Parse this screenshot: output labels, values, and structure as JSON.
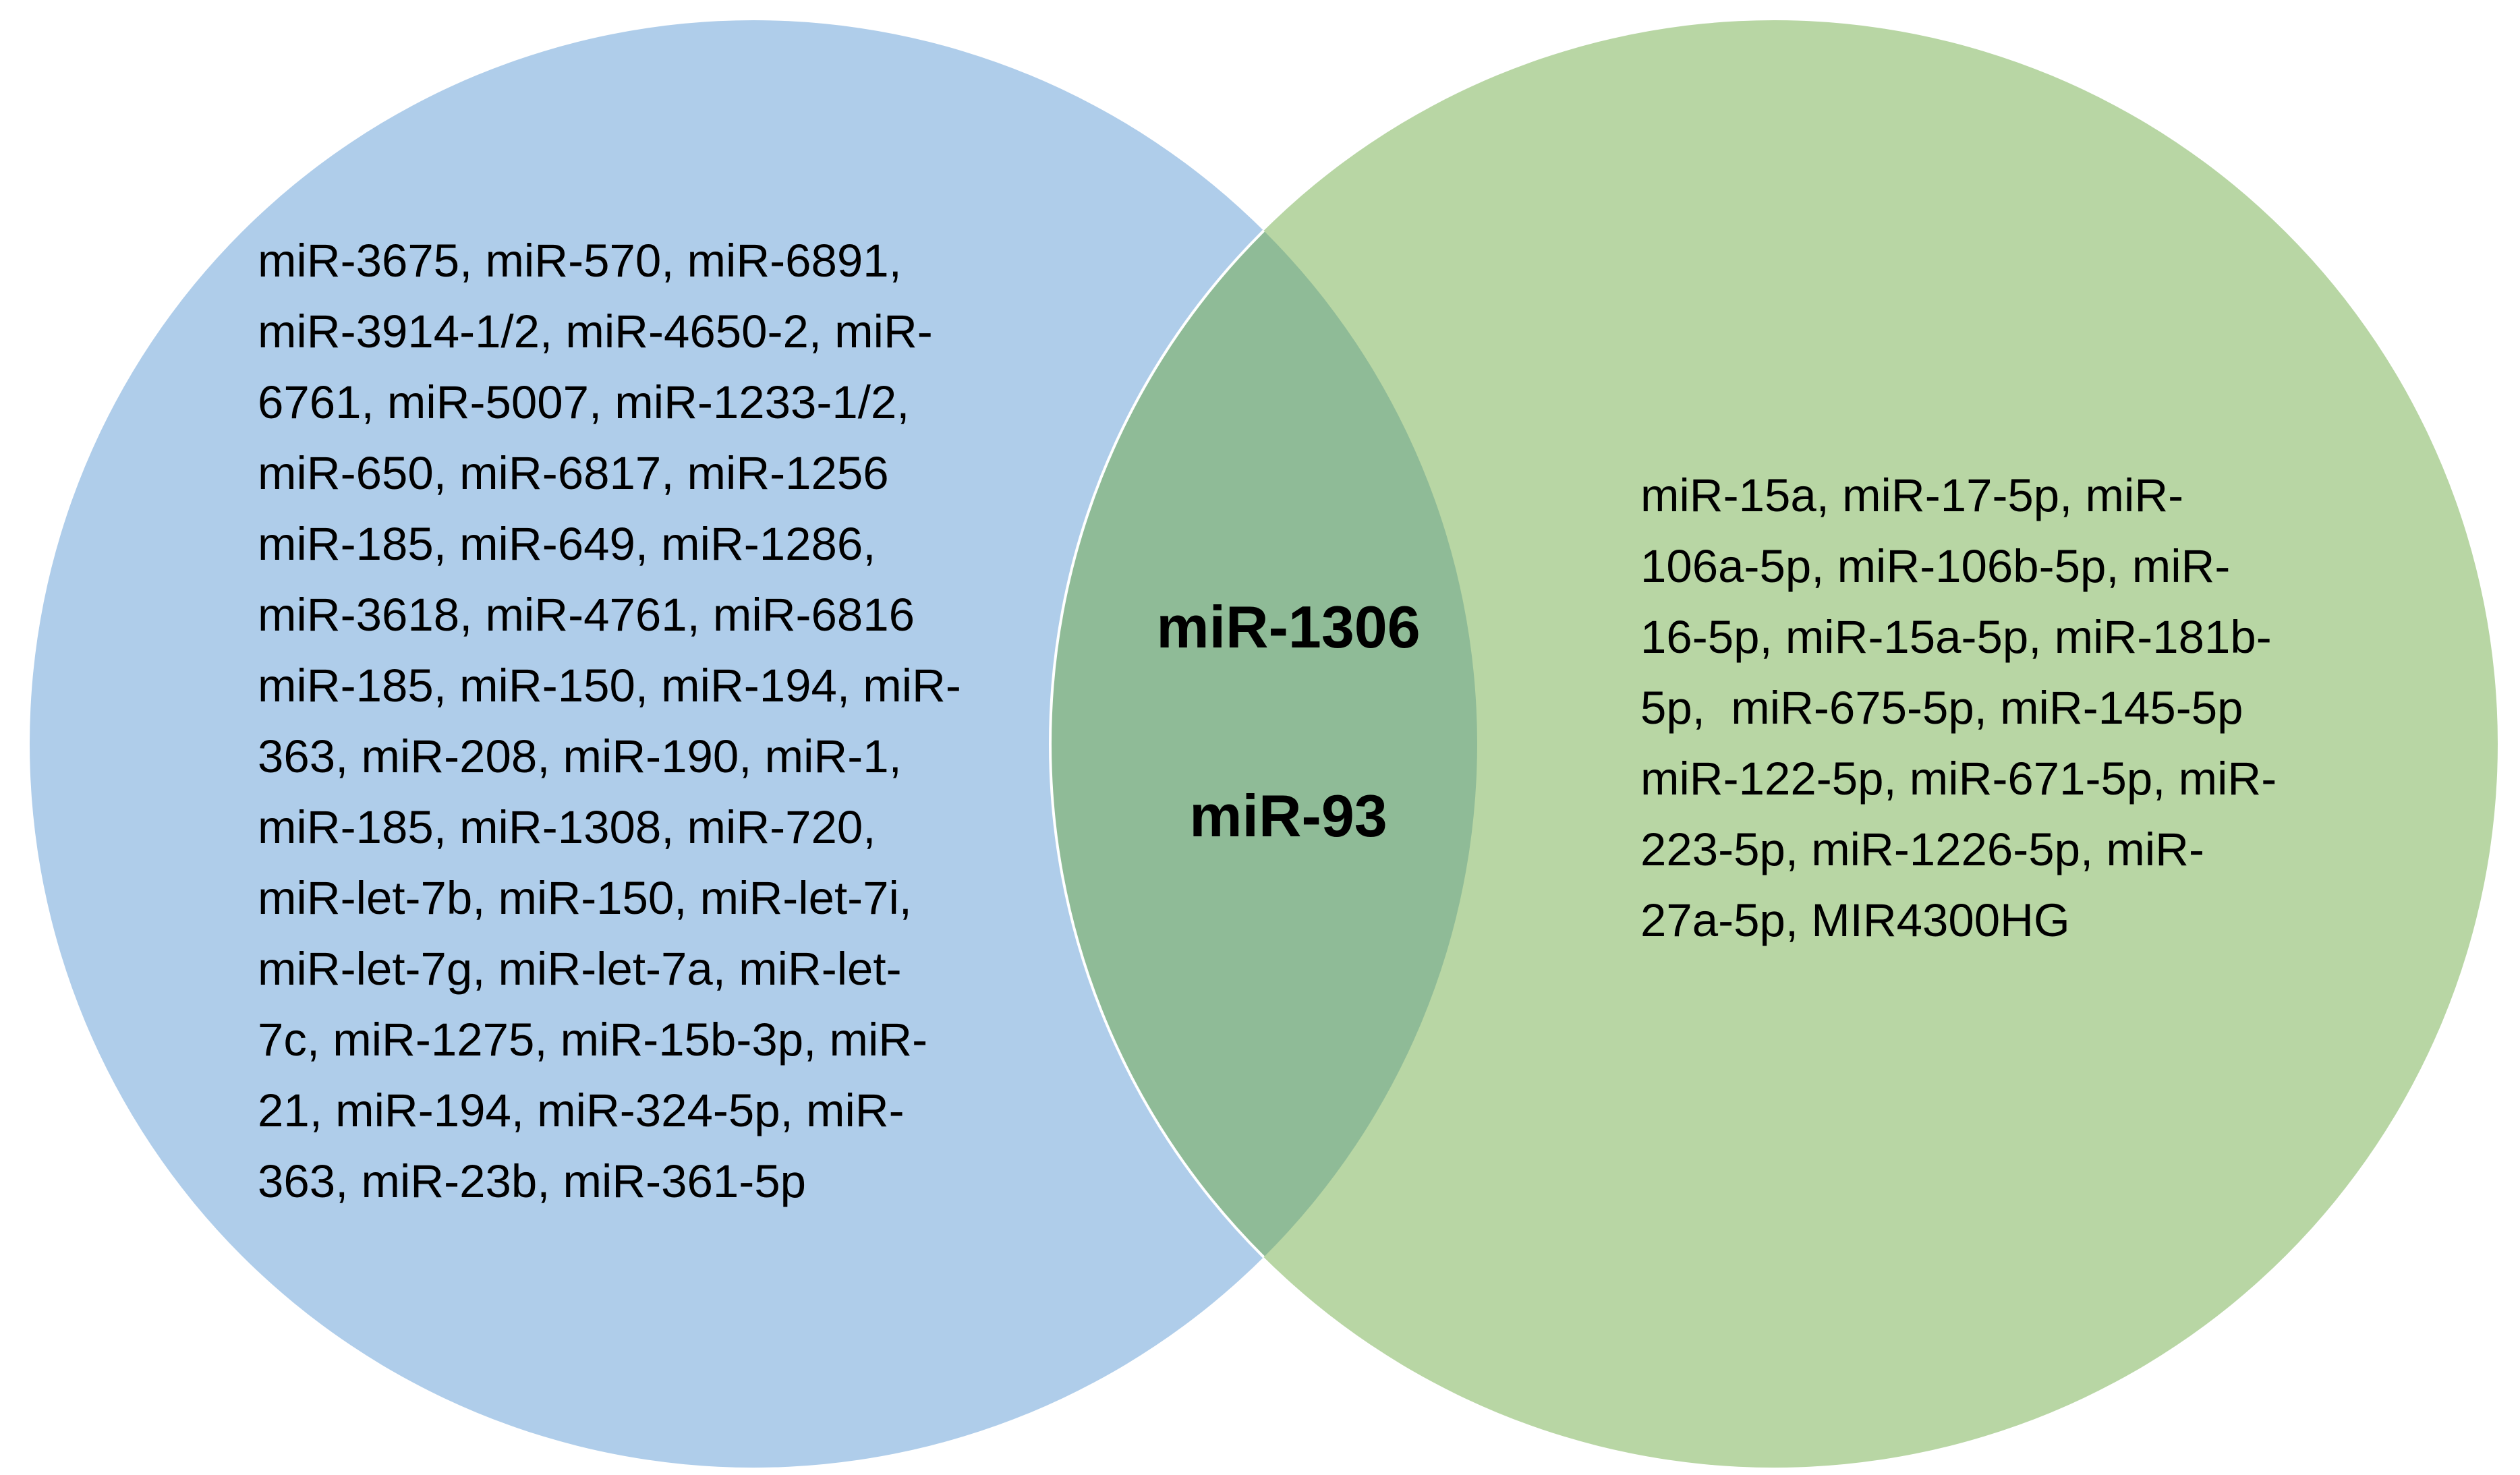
{
  "diagram": {
    "type": "venn",
    "colors": {
      "left_set": "#afcdea",
      "right_set": "#b8d6a4",
      "overlap": "#8fbb97",
      "outline": "#ffffff",
      "text": "#000000"
    },
    "left_set": {
      "lines": [
        "miR-3675, miR-570, miR-6891,",
        "miR-3914-1/2, miR-4650-2, miR-",
        "6761, miR-5007, miR-1233-1/2,",
        "miR-650, miR-6817, miR-1256",
        "miR-185, miR-649, miR-1286,",
        "miR-3618, miR-4761, miR-6816",
        "miR-185, miR-150, miR-194, miR-",
        "363, miR-208, miR-190, miR-1,",
        "miR-185, miR-1308, miR-720,",
        "miR-let-7b, miR-150, miR-let-7i,",
        "miR-let-7g, miR-let-7a, miR-let-",
        "7c, miR-1275, miR-15b-3p, miR-",
        "21, miR-194, miR-324-5p, miR-",
        "363, miR-23b, miR-361-5p"
      ]
    },
    "overlap": {
      "items": [
        "miR-1306",
        "miR-93"
      ]
    },
    "right_set": {
      "lines": [
        "miR-15a, miR-17-5p, miR-",
        "106a-5p, miR-106b-5p, miR-",
        "16-5p, miR-15a-5p, miR-181b-",
        "5p,  miR-675-5p, miR-145-5p",
        "miR-122-5p, miR-671-5p, miR-",
        "223-5p, miR-1226-5p, miR-",
        "27a-5p, MIR4300HG"
      ]
    }
  }
}
